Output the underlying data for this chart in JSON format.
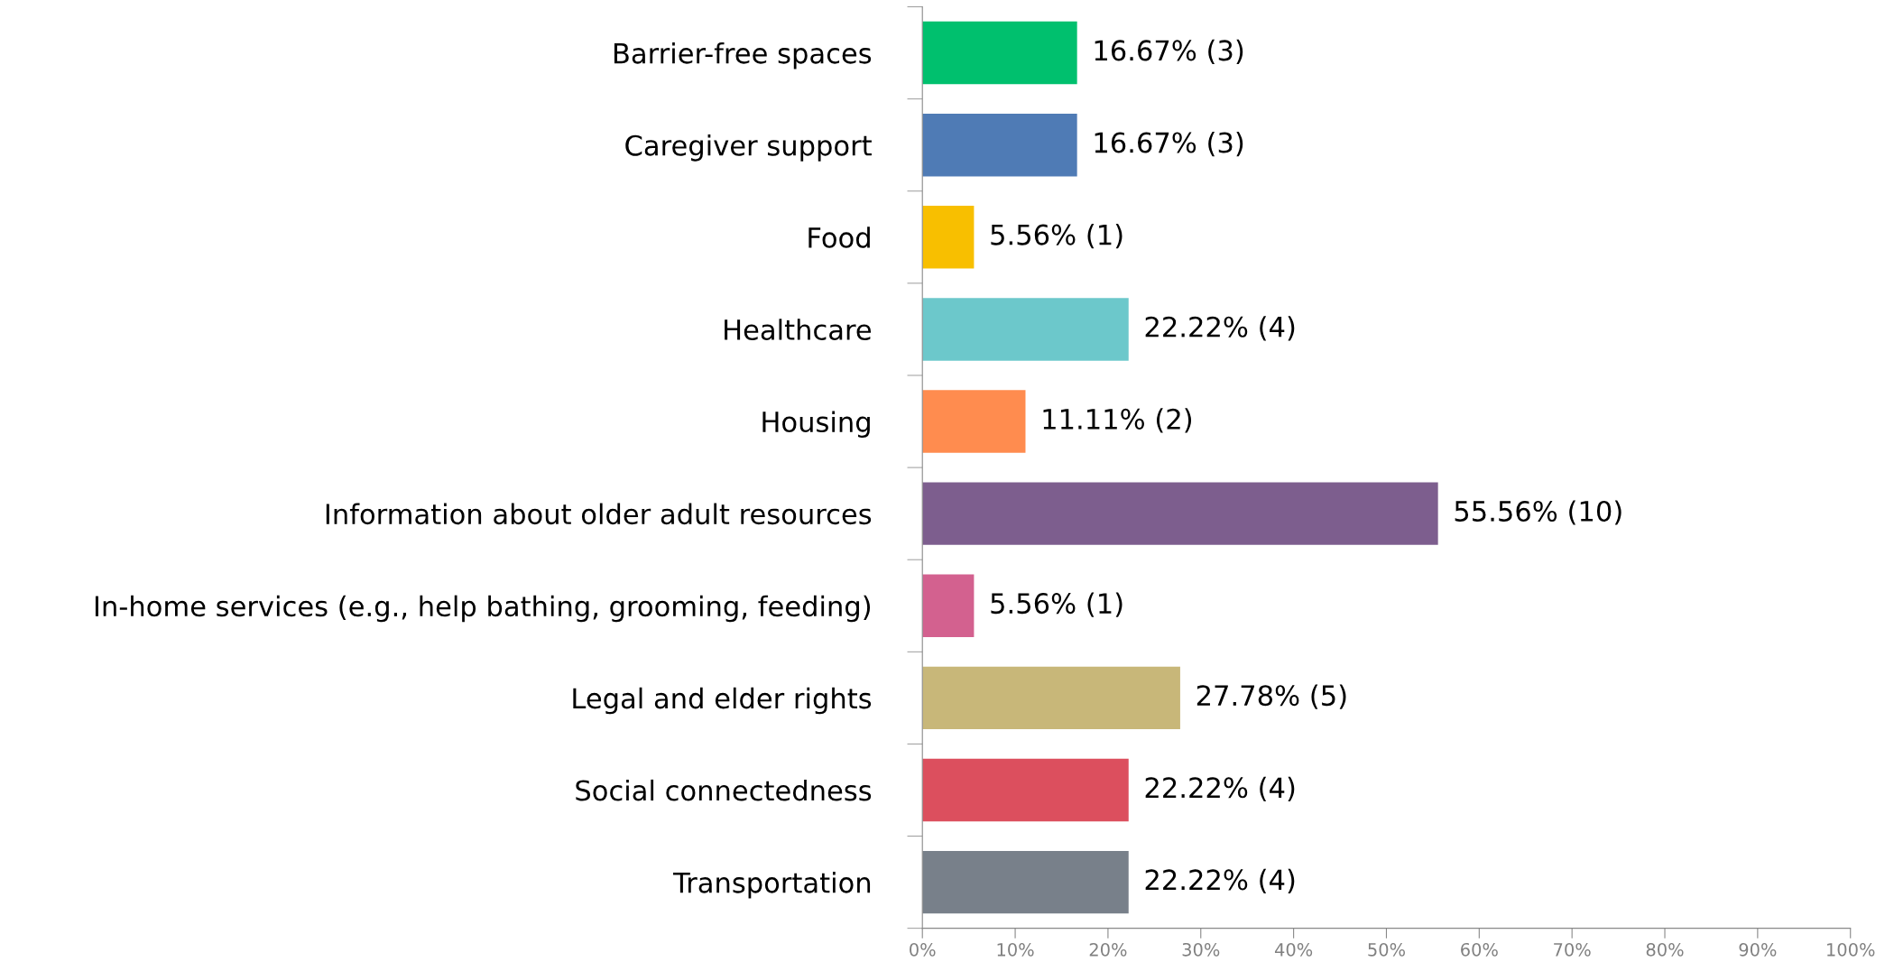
{
  "chart_data": {
    "type": "bar",
    "orientation": "horizontal",
    "categories": [
      "Barrier-free spaces",
      "Caregiver support",
      "Food",
      "Healthcare",
      "Housing",
      "Information about older adult resources",
      "In-home services (e.g., help bathing, grooming, feeding)",
      "Legal and elder rights",
      "Social connectedness",
      "Transportation"
    ],
    "values": [
      16.67,
      16.67,
      5.56,
      22.22,
      11.11,
      55.56,
      5.56,
      27.78,
      22.22,
      22.22
    ],
    "colors": [
      "#00c06e",
      "#4f7bb5",
      "#f8bf00",
      "#6cc8cb",
      "#ff8c4f",
      "#7d5e8e",
      "#d3618f",
      "#c8b779",
      "#dc4f5e",
      "#78808a"
    ],
    "value_labels": [
      "16.67% (3)",
      "16.67% (3)",
      "5.56% (1)",
      "22.22% (4)",
      "11.11% (2)",
      "55.56% (10)",
      "5.56% (1)",
      "27.78% (5)",
      "22.22% (4)",
      "22.22% (4)"
    ],
    "xlim": [
      0,
      100
    ],
    "xticks": [
      {
        "value": 0,
        "label": "0%"
      },
      {
        "value": 10,
        "label": "10%"
      },
      {
        "value": 20,
        "label": "20%"
      },
      {
        "value": 30,
        "label": "30%"
      },
      {
        "value": 40,
        "label": "40%"
      },
      {
        "value": 50,
        "label": "50%"
      },
      {
        "value": 60,
        "label": "60%"
      },
      {
        "value": 70,
        "label": "70%"
      },
      {
        "value": 80,
        "label": "80%"
      },
      {
        "value": 90,
        "label": "90%"
      },
      {
        "value": 100,
        "label": "100%"
      }
    ],
    "grid": false,
    "legend": false
  }
}
